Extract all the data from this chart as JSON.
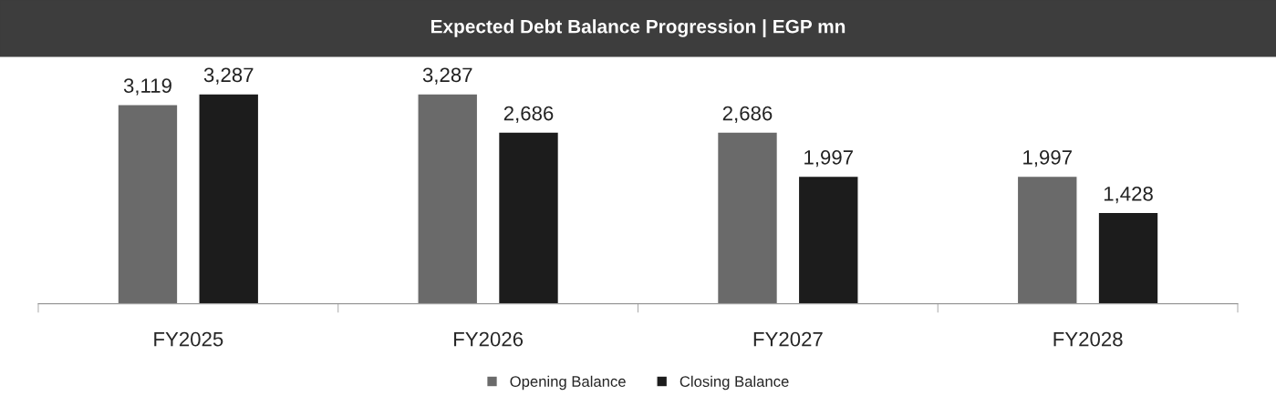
{
  "chart_data": {
    "type": "bar",
    "title": "Expected Debt Balance Progression | EGP mn",
    "categories": [
      "FY2025",
      "FY2026",
      "FY2027",
      "FY2028"
    ],
    "series": [
      {
        "name": "Opening Balance",
        "color": "#6a6a6a",
        "values": [
          3119,
          3287,
          2686,
          1997
        ],
        "value_labels": [
          "3,119",
          "3,287",
          "2,686",
          "1,997"
        ]
      },
      {
        "name": "Closing Balance",
        "color": "#1c1c1c",
        "values": [
          3287,
          2686,
          1997,
          1428
        ],
        "value_labels": [
          "3,287",
          "2,686",
          "1,997",
          "1,428"
        ]
      }
    ],
    "legend": "bottom",
    "grid": false
  }
}
